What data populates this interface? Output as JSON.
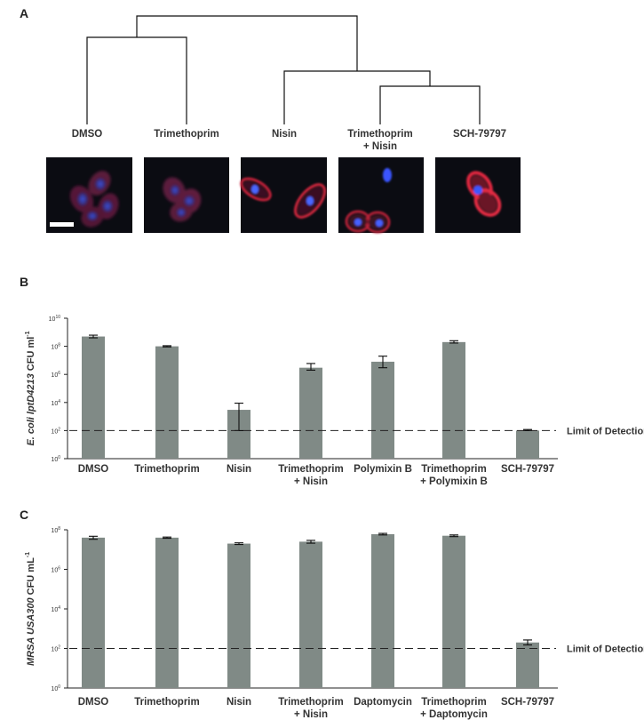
{
  "panel_a": {
    "letter": "A",
    "leaves": [
      {
        "lines": [
          "DMSO"
        ]
      },
      {
        "lines": [
          "Trimethoprim"
        ]
      },
      {
        "lines": [
          "Nisin"
        ]
      },
      {
        "lines": [
          "Trimethoprim",
          "+ Nisin"
        ]
      },
      {
        "lines": [
          "SCH-79797"
        ]
      }
    ]
  },
  "chart_data": [
    {
      "panel": "B",
      "type": "bar",
      "ylabel_parts": [
        "E. coli lptD4213",
        " CFU ml",
        "-1"
      ],
      "yscale": "log",
      "ylim": [
        1,
        10000000000
      ],
      "yticks": [
        {
          "base": "10",
          "exp": "0",
          "value": 1
        },
        {
          "base": "10",
          "exp": "2",
          "value": 100
        },
        {
          "base": "10",
          "exp": "4",
          "value": 10000
        },
        {
          "base": "10",
          "exp": "6",
          "value": 1000000
        },
        {
          "base": "10",
          "exp": "8",
          "value": 100000000
        },
        {
          "base": "10",
          "exp": "10",
          "value": 10000000000
        }
      ],
      "categories": [
        {
          "lines": [
            "DMSO"
          ]
        },
        {
          "lines": [
            "Trimethoprim"
          ]
        },
        {
          "lines": [
            "Nisin"
          ]
        },
        {
          "lines": [
            "Trimethoprim",
            "+ Nisin"
          ]
        },
        {
          "lines": [
            "Polymixin B"
          ]
        },
        {
          "lines": [
            "Trimethoprim",
            "+ Polymixin B"
          ]
        },
        {
          "lines": [
            "SCH-79797"
          ]
        }
      ],
      "values": [
        500000000,
        100000000,
        3000,
        3000000,
        8000000,
        200000000,
        100
      ],
      "error_low": [
        400000000,
        90000000,
        100,
        2000000,
        3000000,
        170000000,
        100
      ],
      "error_high": [
        620000000,
        110000000,
        9000,
        6000000,
        20000000,
        250000000,
        120
      ],
      "limit_of_detection": {
        "value": 100,
        "label": "Limit of Detection"
      }
    },
    {
      "panel": "C",
      "type": "bar",
      "ylabel_parts": [
        "MRSA USA300",
        " CFU mL",
        "-1"
      ],
      "yscale": "log",
      "ylim": [
        1,
        100000000
      ],
      "yticks": [
        {
          "base": "10",
          "exp": "0",
          "value": 1
        },
        {
          "base": "10",
          "exp": "2",
          "value": 100
        },
        {
          "base": "10",
          "exp": "4",
          "value": 10000
        },
        {
          "base": "10",
          "exp": "6",
          "value": 1000000
        },
        {
          "base": "10",
          "exp": "8",
          "value": 100000000
        }
      ],
      "categories": [
        {
          "lines": [
            "DMSO"
          ]
        },
        {
          "lines": [
            "Trimethoprim"
          ]
        },
        {
          "lines": [
            "Nisin"
          ]
        },
        {
          "lines": [
            "Trimethoprim",
            "+ Nisin"
          ]
        },
        {
          "lines": [
            "Daptomycin"
          ]
        },
        {
          "lines": [
            "Trimethoprim",
            "+ Daptomycin"
          ]
        },
        {
          "lines": [
            "SCH-79797"
          ]
        }
      ],
      "values": [
        40000000,
        40000000,
        20000000,
        25000000,
        60000000,
        50000000,
        200
      ],
      "error_low": [
        33000000,
        37000000,
        18000000,
        21000000,
        55000000,
        45000000,
        150
      ],
      "error_high": [
        47000000,
        43000000,
        22000000,
        29000000,
        66000000,
        55000000,
        270
      ],
      "limit_of_detection": {
        "value": 100,
        "label": "Limit of Detection"
      }
    }
  ]
}
